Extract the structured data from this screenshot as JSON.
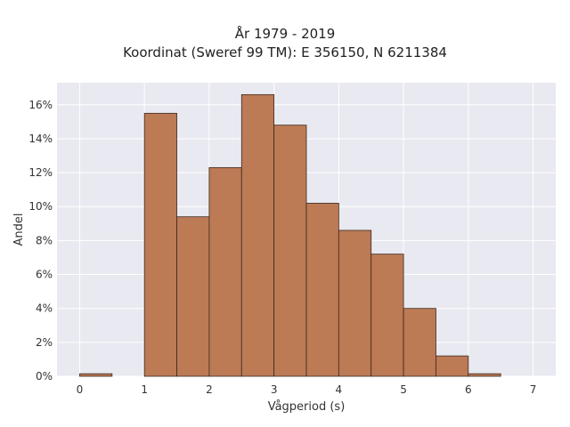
{
  "chart_data": {
    "type": "bar",
    "title": "År 1979 - 2019",
    "subtitle": "Koordinat (Sweref 99 TM): E 356150, N 6211384",
    "xlabel": "Vågperiod (s)",
    "ylabel": "Andel",
    "xlim": [
      -0.35,
      7.35
    ],
    "ylim": [
      0,
      0.173
    ],
    "x_ticks": [
      0,
      1,
      2,
      3,
      4,
      5,
      6,
      7
    ],
    "y_ticks": [
      0,
      0.02,
      0.04,
      0.06,
      0.08,
      0.1,
      0.12,
      0.14,
      0.16
    ],
    "y_tick_labels": [
      "0%",
      "2%",
      "4%",
      "6%",
      "8%",
      "10%",
      "12%",
      "14%",
      "16%"
    ],
    "bins": [
      {
        "x0": 0.0,
        "x1": 0.5,
        "value": 0.0015
      },
      {
        "x0": 1.0,
        "x1": 1.5,
        "value": 0.155
      },
      {
        "x0": 1.5,
        "x1": 2.0,
        "value": 0.094
      },
      {
        "x0": 2.0,
        "x1": 2.5,
        "value": 0.123
      },
      {
        "x0": 2.5,
        "x1": 3.0,
        "value": 0.166
      },
      {
        "x0": 3.0,
        "x1": 3.5,
        "value": 0.148
      },
      {
        "x0": 3.5,
        "x1": 4.0,
        "value": 0.102
      },
      {
        "x0": 4.0,
        "x1": 4.5,
        "value": 0.086
      },
      {
        "x0": 4.5,
        "x1": 5.0,
        "value": 0.072
      },
      {
        "x0": 5.0,
        "x1": 5.5,
        "value": 0.04
      },
      {
        "x0": 5.5,
        "x1": 6.0,
        "value": 0.012
      },
      {
        "x0": 6.0,
        "x1": 6.5,
        "value": 0.0015
      }
    ],
    "colors": {
      "bar_fill": "#bc7a55",
      "bar_edge": "#3b2a20",
      "plot_background": "#e9e9f1",
      "grid": "#ffffff"
    },
    "grid": true,
    "legend": "none"
  }
}
